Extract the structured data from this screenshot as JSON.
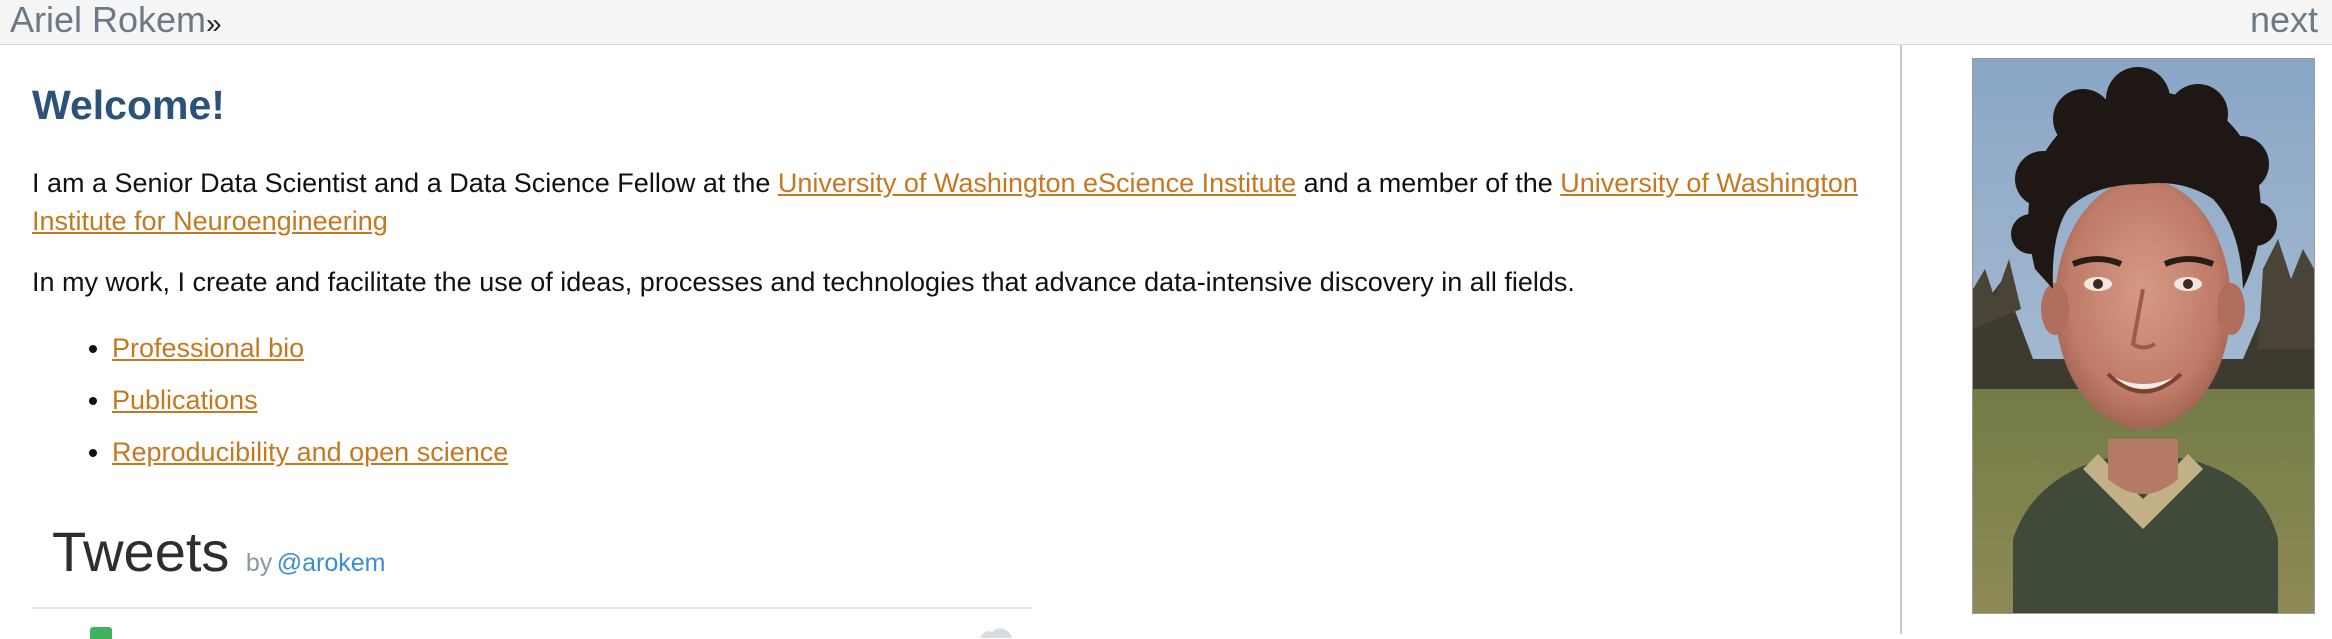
{
  "topbar": {
    "home_label": "Ariel Rokem",
    "separator": "»",
    "next_label": "next"
  },
  "main": {
    "heading": "Welcome!",
    "intro": {
      "part1": "I am a Senior Data Scientist and a Data Science Fellow at the ",
      "link1": "University of Washington eScience Institute",
      "part2": " and a member of the ",
      "link2": "University of Washington Institute for Neuroengineering"
    },
    "mission": "In my work, I create and facilitate the use of ideas, processes and technologies that advance data-intensive discovery in all fields.",
    "links": [
      "Professional bio",
      "Publications",
      "Reproducibility and open science"
    ],
    "tweets": {
      "title": "Tweets",
      "by": "by",
      "handle": "@arokem"
    }
  },
  "colors": {
    "heading": "#2b5278",
    "link": "#c5781f",
    "topbar_link": "#6b7a87",
    "twitter_handle": "#3b8dd0"
  },
  "icons": {
    "tweet_avatar": "avatar-icon",
    "tweet_action": "twitter-icon"
  }
}
